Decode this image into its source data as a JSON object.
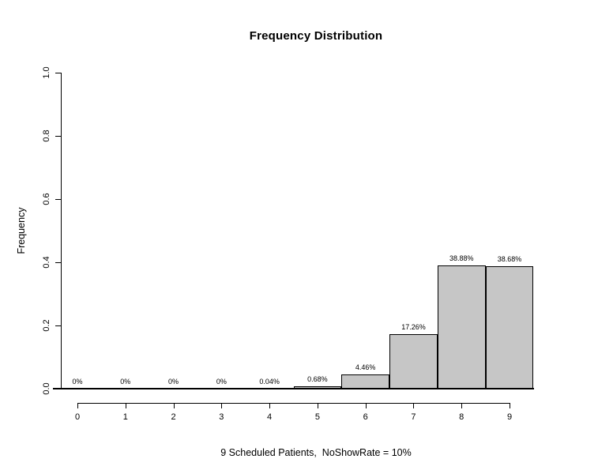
{
  "title": "Frequency Distribution",
  "chart_data": {
    "type": "bar",
    "title": "Frequency Distribution",
    "xlabel": "9 Scheduled Patients,  NoShowRate = 10%",
    "ylabel": "Frequency",
    "categories": [
      "0",
      "1",
      "2",
      "3",
      "4",
      "5",
      "6",
      "7",
      "8",
      "9"
    ],
    "values": [
      0,
      0,
      0,
      0,
      0.0004,
      0.0068,
      0.0446,
      0.1726,
      0.3888,
      0.3868
    ],
    "bar_labels": [
      "0%",
      "0%",
      "0%",
      "0%",
      "0.04%",
      "0.68%",
      "4.46%",
      "17.26%",
      "38.88%",
      "38.68%"
    ],
    "ylim": [
      0.0,
      1.0
    ],
    "y_ticks": [
      0.0,
      0.2,
      0.4,
      0.6,
      0.8,
      1.0
    ],
    "y_tick_labels": [
      "0.0",
      "0.2",
      "0.4",
      "0.6",
      "0.8",
      "1.0"
    ],
    "grid": false,
    "legend": false,
    "bar_color": "#c6c6c6",
    "bar_border_color": "#000000",
    "axis_color": "#000000",
    "text_color": "#000000",
    "background_color": "#ffffff"
  }
}
